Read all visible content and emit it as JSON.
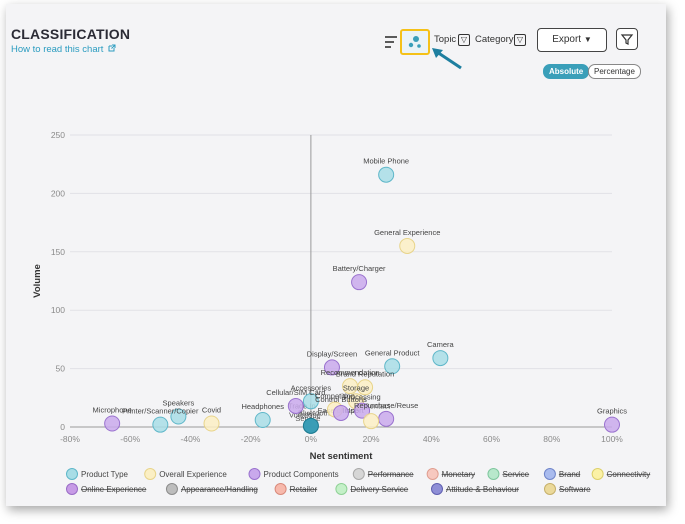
{
  "header": {
    "title": "CLASSIFICATION",
    "help_link": "How to read this chart",
    "topic_label": "Topic",
    "category_label": "Category",
    "export_label": "Export",
    "toggle_absolute": "Absolute",
    "toggle_percentage": "Percentage"
  },
  "colors": {
    "accent": "#3a9fb9",
    "highlight": "#f5c118",
    "product_type": "#a8dde6",
    "overall_experience": "#fbefc4",
    "product_components": "#c9a9ec",
    "performance": "#d6d6d6",
    "monetary": "#f7c8bf",
    "service": "#b8e8cc",
    "brand": "#a9bbee",
    "connectivity": "#fbf1a6",
    "online_experience": "#c79be6",
    "appearance_handling": "#bdbdbd",
    "retailer": "#f7b9ac",
    "delivery_service": "#c4f0c8",
    "attitude_behaviour": "#8e8ed6",
    "software": "#ebd99a"
  },
  "chart_data": {
    "type": "scatter",
    "xlabel": "Net sentiment",
    "ylabel": "Volume",
    "xlim": [
      -80,
      100
    ],
    "ylim": [
      0,
      250
    ],
    "x_ticks": [
      "-80%",
      "-60%",
      "-40%",
      "-20%",
      "0%",
      "20%",
      "40%",
      "60%",
      "80%",
      "100%"
    ],
    "x_tick_values": [
      -80,
      -60,
      -40,
      -20,
      0,
      20,
      40,
      60,
      80,
      100
    ],
    "y_ticks": [
      "0",
      "50",
      "100",
      "150",
      "200",
      "250"
    ],
    "y_tick_values": [
      0,
      50,
      100,
      150,
      200,
      250
    ],
    "grid": "y",
    "legend_position": "bottom",
    "points": [
      {
        "label": "Mobile Phone",
        "x": 25,
        "y": 216,
        "series": "Product Type"
      },
      {
        "label": "General Experience",
        "x": 32,
        "y": 155,
        "series": "Overall Experience"
      },
      {
        "label": "Battery/Charger",
        "x": 16,
        "y": 124,
        "series": "Product Components"
      },
      {
        "label": "Camera",
        "x": 43,
        "y": 59,
        "series": "Product Type"
      },
      {
        "label": "Display/Screen",
        "x": 7,
        "y": 51,
        "series": "Product Components"
      },
      {
        "label": "General Product",
        "x": 27,
        "y": 52,
        "series": "Product Type"
      },
      {
        "label": "Recommendation",
        "x": 13,
        "y": 35,
        "series": "Overall Experience"
      },
      {
        "label": "Brand Reputation",
        "x": 18,
        "y": 34,
        "series": "Overall Experience"
      },
      {
        "label": "Storage",
        "x": 15,
        "y": 22,
        "series": "Overall Experience"
      },
      {
        "label": "Accessories",
        "x": 0,
        "y": 22,
        "series": "Product Type"
      },
      {
        "label": "Cellular/SIM Card",
        "x": -5,
        "y": 18,
        "series": "Product Components"
      },
      {
        "label": "Competition",
        "x": 8,
        "y": 15,
        "series": "Overall Experience"
      },
      {
        "label": "Control Buttons",
        "x": 10,
        "y": 12,
        "series": "Product Components"
      },
      {
        "label": "Processing",
        "x": 17,
        "y": 14,
        "series": "Product Components"
      },
      {
        "label": "Repurchase/Reuse",
        "x": 25,
        "y": 7,
        "series": "Product Components"
      },
      {
        "label": "Headphones",
        "x": -16,
        "y": 6,
        "series": "Product Type"
      },
      {
        "label": "Speakers",
        "x": -44,
        "y": 9,
        "series": "Product Type"
      },
      {
        "label": "Covid",
        "x": -33,
        "y": 3,
        "series": "Overall Experience"
      },
      {
        "label": "Printer/Scanner/Copier",
        "x": -50,
        "y": 2,
        "series": "Product Type"
      },
      {
        "label": "Microphone",
        "x": -66,
        "y": 3,
        "series": "Product Components"
      },
      {
        "label": "Graphics",
        "x": 100,
        "y": 2,
        "series": "Product Components"
      },
      {
        "label": "",
        "x": 0,
        "y": 1,
        "series": "Product Type"
      },
      {
        "label": "",
        "x": 20,
        "y": 5,
        "series": "Overall Experience"
      }
    ],
    "overlap_labels": [
      {
        "text": "Trade In",
        "x": -3,
        "y": 16
      },
      {
        "text": "Ease of Use",
        "x": 9,
        "y": 12
      },
      {
        "text": "Import",
        "x": 14,
        "y": 12
      },
      {
        "text": "Contact",
        "x": 22,
        "y": 16
      },
      {
        "text": "Vodafone",
        "x": -2,
        "y": 8
      },
      {
        "text": "Bluetooth",
        "x": 1,
        "y": 10
      },
      {
        "text": "Service",
        "x": -1,
        "y": 5
      }
    ],
    "series": [
      {
        "name": "Product Type",
        "color": "#a8dde6",
        "border": "#5fb7c9",
        "active": true
      },
      {
        "name": "Overall Experience",
        "color": "#fbefc4",
        "border": "#e8d48a",
        "active": true
      },
      {
        "name": "Product Components",
        "color": "#c9a9ec",
        "border": "#9a72cf",
        "active": true
      },
      {
        "name": "Performance",
        "color": "#d6d6d6",
        "border": "#a9a9a9",
        "active": false
      },
      {
        "name": "Monetary",
        "color": "#f7c8bf",
        "border": "#e09e90",
        "active": false
      },
      {
        "name": "Service",
        "color": "#b8e8cc",
        "border": "#7fc79e",
        "active": false
      },
      {
        "name": "Brand",
        "color": "#a9bbee",
        "border": "#6f84c9",
        "active": false
      },
      {
        "name": "Connectivity",
        "color": "#fbf1a6",
        "border": "#ddd06a",
        "active": false
      },
      {
        "name": "Online Experience",
        "color": "#c79be6",
        "border": "#9a6cc6",
        "active": false
      },
      {
        "name": "Appearance/Handling",
        "color": "#bdbdbd",
        "border": "#8c8c8c",
        "active": false
      },
      {
        "name": "Retailer",
        "color": "#f7b9ac",
        "border": "#d98a7b",
        "active": false
      },
      {
        "name": "Delivery Service",
        "color": "#c4f0c8",
        "border": "#8fd196",
        "active": false
      },
      {
        "name": "Attitude & Behaviour",
        "color": "#8e8ed6",
        "border": "#5f5fb0",
        "active": false
      },
      {
        "name": "Software",
        "color": "#ebd99a",
        "border": "#c6b06a",
        "active": false
      }
    ]
  }
}
